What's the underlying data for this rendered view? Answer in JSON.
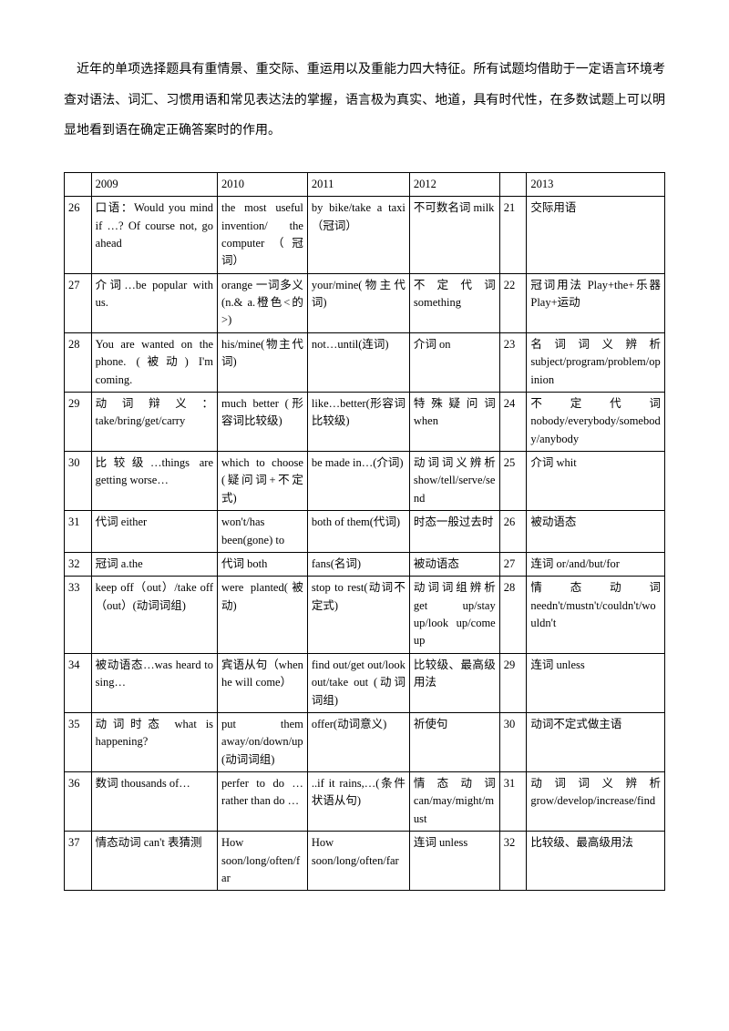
{
  "intro": "近年的单项选择题具有重情景、重交际、重运用以及重能力四大特征。所有试题均借助于一定语言环境考查对语法、词汇、习惯用语和常见表达法的掌握，语言极为真实、地道，具有时代性，在多数试题上可以明显地看到语在确定正确答案时的作用。",
  "headers": [
    "",
    "2009",
    "2010",
    "2011",
    "2012",
    "",
    "2013"
  ],
  "rows": [
    [
      "26",
      "口语：Would you mind if …? Of course not, go ahead",
      "the most useful invention/ the computer（冠词）",
      "by bike/take a taxi（冠词）",
      "不可数名词 milk",
      "21",
      "交际用语"
    ],
    [
      "27",
      "介词…be popular with us.",
      "orange 一词多义(n.& a.橙色<的>)",
      "your/mine(物主代词)",
      "不定代词 something",
      "22",
      "冠词用法 Play+the+乐器 Play+运动"
    ],
    [
      "28",
      "You are wanted on the phone. (被动) I'm coming.",
      "his/mine(物主代词)",
      "not…until(连词)",
      "介词 on",
      "23",
      "名词词义辨析 subject/program/problem/opinion"
    ],
    [
      "29",
      "动词辩义：take/bring/get/carry",
      "much better (形容词比较级)",
      "like…better(形容词比较级)",
      "特殊疑问词 when",
      "24",
      "不定代词 nobody/everybody/somebody/anybody"
    ],
    [
      "30",
      "比较级…things are getting worse…",
      "which to choose (疑问词+不定式)",
      "be made in…(介词)",
      "动词词义辨析 show/tell/serve/send",
      "25",
      "介词 whit"
    ],
    [
      "31",
      "代词 either",
      "won't/has been(gone) to",
      "both of them(代词)",
      "时态一般过去时",
      "26",
      "被动语态"
    ],
    [
      "32",
      "冠词 a.the",
      "代词 both",
      "fans(名词)",
      "被动语态",
      "27",
      "连词 or/and/but/for"
    ],
    [
      "33",
      "keep off（out）/take off（out）(动词词组)",
      "were planted(被动)",
      "stop to rest(动词不定式)",
      "动词词组辨析 get up/stay up/look up/come up",
      "28",
      "情态动词 needn't/mustn't/couldn't/wouldn't"
    ],
    [
      "34",
      "被动语态…was heard to sing…",
      "宾语从句（when he will come）",
      "find out/get out/look out/take out (动词词组)",
      "比较级、最高级用法",
      "29",
      "连词 unless"
    ],
    [
      "35",
      "动词时态 what is happening?",
      "put them away/on/down/up (动词词组)",
      "offer(动词意义)",
      "祈使句",
      "30",
      "动词不定式做主语"
    ],
    [
      "36",
      "数词 thousands of…",
      "perfer to do …rather than do …",
      "..if it rains,…(条件状语从句)",
      "情态动词 can/may/might/must",
      "31",
      "动词词义辨析 grow/develop/increase/find"
    ],
    [
      "37",
      "情态动词 can't 表猜测",
      "How soon/long/often/far",
      "How soon/long/often/far",
      "连词 unless",
      "32",
      "比较级、最高级用法"
    ]
  ]
}
